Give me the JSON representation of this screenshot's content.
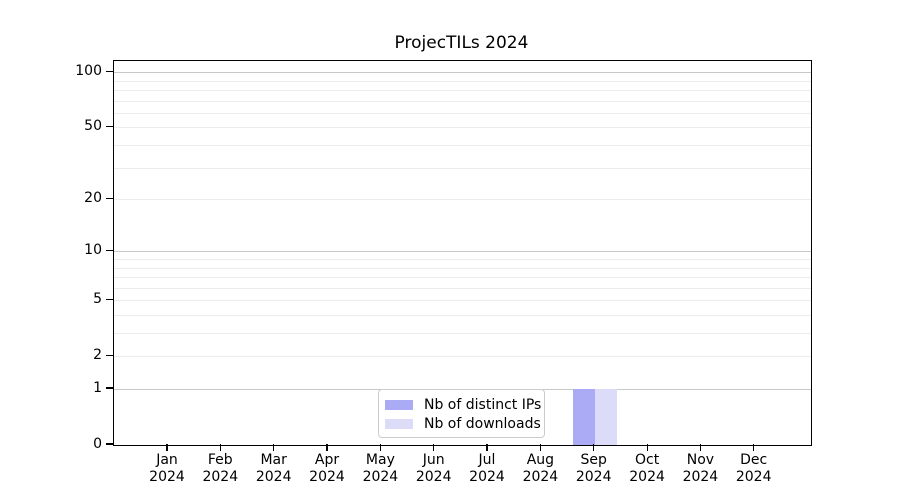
{
  "title": "ProjecTILs 2024",
  "colors": {
    "background": "#ffffff",
    "spine": "#000000",
    "grid_major": "#c8c8c8",
    "grid_minor": "#ececec",
    "legend_border": "#cccccc",
    "distinct_ips_bar": "#aaaaf5",
    "downloads_bar": "#dcdcf8"
  },
  "chart_data": {
    "type": "bar",
    "title": "ProjecTILs 2024",
    "categories": [
      "Jan 2024",
      "Feb 2024",
      "Mar 2024",
      "Apr 2024",
      "May 2024",
      "Jun 2024",
      "Jul 2024",
      "Aug 2024",
      "Sep 2024",
      "Oct 2024",
      "Nov 2024",
      "Dec 2024"
    ],
    "x_axis": {
      "month_labels": [
        "Jan",
        "Feb",
        "Mar",
        "Apr",
        "May",
        "Jun",
        "Jul",
        "Aug",
        "Sep",
        "Oct",
        "Nov",
        "Dec"
      ],
      "year_label": "2024"
    },
    "series": [
      {
        "name": "Nb of distinct IPs",
        "color": "#aaaaf5",
        "values": [
          0,
          0,
          0,
          0,
          0,
          0,
          0,
          0,
          1,
          0,
          0,
          0
        ]
      },
      {
        "name": "Nb of downloads",
        "color": "#dcdcf8",
        "values": [
          0,
          0,
          0,
          0,
          0,
          0,
          0,
          0,
          1,
          0,
          0,
          0
        ]
      }
    ],
    "y_axis": {
      "scale": "log1p",
      "ylim": [
        0,
        115
      ],
      "tick_labels": [
        "100",
        "50",
        "20",
        "10",
        "5",
        "2",
        "1",
        "0"
      ],
      "tick_values": [
        100,
        50,
        20,
        10,
        5,
        2,
        1,
        0
      ],
      "decade_gridline_values": [
        1,
        10,
        100
      ],
      "minor_gridline_values": [
        3,
        4,
        6,
        7,
        8,
        9,
        30,
        40,
        60,
        70,
        80,
        90
      ]
    },
    "legend": {
      "position": "lower center",
      "entries": [
        "Nb of distinct IPs",
        "Nb of downloads"
      ]
    },
    "xlabel": "",
    "ylabel": ""
  }
}
